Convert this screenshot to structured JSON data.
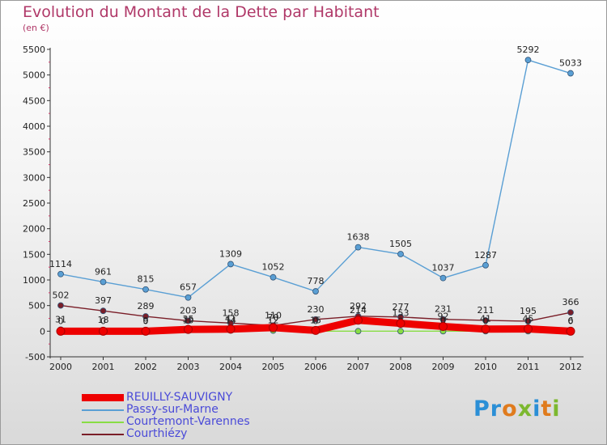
{
  "header": {
    "title": "Evolution du Montant de la Dette par Habitant",
    "subtitle": "(en €)"
  },
  "colors": {
    "title": "#b03868",
    "legend_text": "#4a4ad8",
    "axis": "#222222"
  },
  "logo": {
    "text": "Proxiti",
    "letters": [
      {
        "ch": "P",
        "color": "#2b8fd6"
      },
      {
        "ch": "r",
        "color": "#2b8fd6"
      },
      {
        "ch": "o",
        "color": "#e07b1d"
      },
      {
        "ch": "x",
        "color": "#7cb82f"
      },
      {
        "ch": "i",
        "color": "#2b8fd6"
      },
      {
        "ch": "t",
        "color": "#e07b1d"
      },
      {
        "ch": "i",
        "color": "#7cb82f"
      }
    ]
  },
  "chart_data": {
    "type": "line",
    "title": "Evolution du Montant de la Dette par Habitant",
    "subtitle": "(en €)",
    "x": [
      "2000",
      "2001",
      "2002",
      "2003",
      "2004",
      "2005",
      "2006",
      "2007",
      "2008",
      "2009",
      "2010",
      "2011",
      "2012"
    ],
    "ylim": [
      -500,
      5500
    ],
    "yticks": [
      -500,
      0,
      500,
      1000,
      1500,
      2000,
      2500,
      3000,
      3500,
      4000,
      4500,
      5000,
      5500
    ],
    "grid": false,
    "legend_position": "bottom-left",
    "series": [
      {
        "name": "REUILLY-SAUVIGNY",
        "color": "#ee0000",
        "thick": true,
        "values": [
          0,
          0,
          0,
          35,
          41,
          70,
          15,
          214,
          153,
          92,
          41,
          45,
          0
        ],
        "labels": [
          "0",
          "0",
          "0",
          "35",
          "41",
          "70",
          "15",
          "214",
          "153",
          "92",
          "41",
          "45",
          "0"
        ]
      },
      {
        "name": "Passy-sur-Marne",
        "color": "#5a9fd4",
        "thick": false,
        "values": [
          1114,
          961,
          815,
          657,
          1309,
          1052,
          778,
          1638,
          1505,
          1037,
          1287,
          5292,
          5033
        ],
        "labels": [
          "1114",
          "961",
          "815",
          "657",
          "1309",
          "1052",
          "778",
          "1638",
          "1505",
          "1037",
          "1287",
          "5292",
          "5033"
        ]
      },
      {
        "name": "Courtemont-Varennes",
        "color": "#88dd44",
        "thick": false,
        "values": [
          31,
          18,
          9,
          10,
          14,
          12,
          0,
          0,
          0,
          0,
          0,
          0,
          6
        ],
        "labels": [
          "31",
          "18",
          "9",
          "10",
          "14",
          "12",
          "0",
          "0",
          "0",
          "0",
          "0",
          "0",
          "6"
        ]
      },
      {
        "name": "Courthiézy",
        "color": "#7a1e28",
        "thick": false,
        "values": [
          502,
          397,
          289,
          203,
          158,
          110,
          230,
          292,
          277,
          231,
          211,
          195,
          366
        ],
        "labels": [
          "502",
          "397",
          "289",
          "203",
          "158",
          "110",
          "230",
          "292",
          "277",
          "231",
          "211",
          "195",
          "366"
        ]
      }
    ]
  }
}
